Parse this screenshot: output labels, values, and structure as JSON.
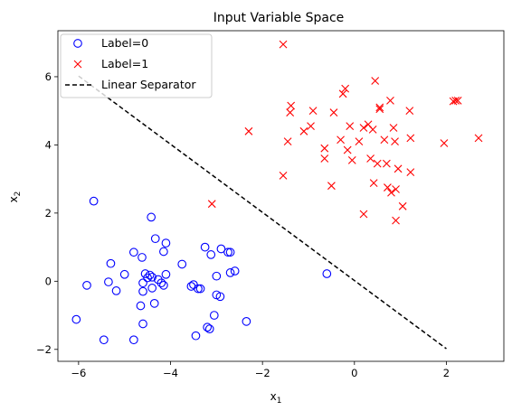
{
  "chart_data": {
    "type": "scatter",
    "title": "Input Variable Space",
    "xlabel": "x",
    "xlabel_sub": "1",
    "ylabel": "x",
    "ylabel_sub": "2",
    "xlim": [
      -6.45,
      3.25
    ],
    "ylim": [
      -2.35,
      7.35
    ],
    "xticks": [
      -6,
      -4,
      -2,
      0,
      2
    ],
    "yticks": [
      -2,
      0,
      2,
      4,
      6
    ],
    "grid": false,
    "legend_position": "top-left",
    "series": [
      {
        "name": "Label=0",
        "marker": "circle-open",
        "color": "#0000ff",
        "points": [
          [
            -5.67,
            2.35
          ],
          [
            -4.42,
            1.88
          ],
          [
            -4.33,
            1.25
          ],
          [
            -4.1,
            1.12
          ],
          [
            -4.8,
            0.85
          ],
          [
            -4.62,
            0.7
          ],
          [
            -4.15,
            0.87
          ],
          [
            -3.75,
            0.5
          ],
          [
            -5.3,
            0.52
          ],
          [
            -5.0,
            0.2
          ],
          [
            -4.55,
            0.22
          ],
          [
            -4.45,
            0.18
          ],
          [
            -4.4,
            0.12
          ],
          [
            -4.27,
            0.05
          ],
          [
            -4.1,
            0.2
          ],
          [
            -4.5,
            0.1
          ],
          [
            -4.6,
            -0.05
          ],
          [
            -4.2,
            -0.05
          ],
          [
            -4.15,
            -0.12
          ],
          [
            -4.4,
            -0.2
          ],
          [
            -5.82,
            -0.12
          ],
          [
            -5.35,
            -0.02
          ],
          [
            -5.18,
            -0.28
          ],
          [
            -4.6,
            -0.3
          ],
          [
            -4.35,
            -0.65
          ],
          [
            -4.65,
            -0.72
          ],
          [
            -3.55,
            -0.15
          ],
          [
            -3.5,
            -0.1
          ],
          [
            -3.4,
            -0.22
          ],
          [
            -3.35,
            -0.22
          ],
          [
            -3.25,
            1.0
          ],
          [
            -3.12,
            0.78
          ],
          [
            -2.9,
            0.95
          ],
          [
            -2.75,
            0.85
          ],
          [
            -2.7,
            0.85
          ],
          [
            -2.7,
            0.25
          ],
          [
            -2.6,
            0.3
          ],
          [
            -3.0,
            0.15
          ],
          [
            -3.0,
            -0.4
          ],
          [
            -2.92,
            -0.45
          ],
          [
            -3.05,
            -1.0
          ],
          [
            -3.2,
            -1.35
          ],
          [
            -3.15,
            -1.4
          ],
          [
            -3.45,
            -1.6
          ],
          [
            -2.35,
            -1.18
          ],
          [
            -4.6,
            -1.25
          ],
          [
            -6.05,
            -1.12
          ],
          [
            -5.45,
            -1.72
          ],
          [
            -4.8,
            -1.72
          ],
          [
            -0.6,
            0.22
          ]
        ]
      },
      {
        "name": "Label=1",
        "marker": "x",
        "color": "#ff0000",
        "points": [
          [
            -1.55,
            6.95
          ],
          [
            -3.1,
            2.27
          ],
          [
            -2.3,
            4.4
          ],
          [
            -1.55,
            3.1
          ],
          [
            -1.45,
            4.1
          ],
          [
            -1.4,
            4.95
          ],
          [
            -1.38,
            5.15
          ],
          [
            -1.1,
            4.4
          ],
          [
            -0.95,
            4.55
          ],
          [
            -0.9,
            5.0
          ],
          [
            -0.65,
            3.9
          ],
          [
            -0.65,
            3.6
          ],
          [
            -0.5,
            2.8
          ],
          [
            -0.45,
            4.95
          ],
          [
            -0.3,
            4.15
          ],
          [
            -0.25,
            5.5
          ],
          [
            -0.2,
            5.65
          ],
          [
            -0.1,
            4.55
          ],
          [
            -0.15,
            3.85
          ],
          [
            -0.05,
            3.55
          ],
          [
            0.1,
            4.1
          ],
          [
            0.2,
            4.5
          ],
          [
            0.2,
            1.97
          ],
          [
            0.3,
            4.6
          ],
          [
            0.35,
            3.6
          ],
          [
            0.4,
            4.45
          ],
          [
            0.42,
            2.88
          ],
          [
            0.45,
            5.88
          ],
          [
            0.5,
            3.45
          ],
          [
            0.55,
            5.1
          ],
          [
            0.55,
            5.05
          ],
          [
            0.65,
            4.15
          ],
          [
            0.7,
            3.45
          ],
          [
            0.72,
            2.75
          ],
          [
            0.78,
            5.3
          ],
          [
            0.8,
            2.6
          ],
          [
            0.85,
            4.5
          ],
          [
            0.88,
            4.1
          ],
          [
            0.9,
            2.7
          ],
          [
            0.9,
            1.78
          ],
          [
            0.95,
            3.3
          ],
          [
            1.05,
            2.2
          ],
          [
            1.2,
            5.0
          ],
          [
            1.22,
            4.2
          ],
          [
            1.22,
            3.2
          ],
          [
            1.95,
            4.05
          ],
          [
            2.15,
            5.28
          ],
          [
            2.2,
            5.3
          ],
          [
            2.25,
            5.3
          ],
          [
            2.7,
            4.2
          ]
        ]
      },
      {
        "name": "Linear Separator",
        "marker": "dashed-line",
        "color": "#000000",
        "points": [
          [
            -6.0,
            6.02
          ],
          [
            2.0,
            -1.98
          ]
        ]
      }
    ]
  }
}
